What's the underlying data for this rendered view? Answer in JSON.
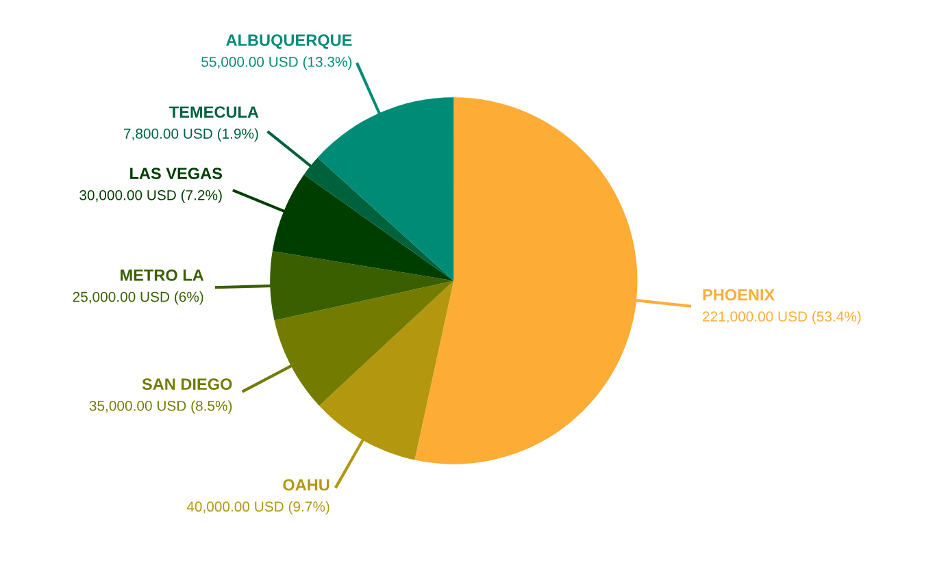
{
  "chart_data": {
    "type": "pie",
    "categories": [
      "PHOENIX",
      "OAHU",
      "SAN DIEGO",
      "METRO LA",
      "LAS VEGAS",
      "TEMECULA",
      "ALBUQUERQUE"
    ],
    "values": [
      221000,
      40000,
      35000,
      25000,
      30000,
      7800,
      55000
    ],
    "colors": [
      "#fdad35",
      "#b3970f",
      "#737b00",
      "#3a5f00",
      "#003e00",
      "#00613d",
      "#008b77"
    ],
    "value_labels": [
      "221,000.00 USD (53.4%)",
      "40,000.00 USD (9.7%)",
      "35,000.00 USD (8.5%)",
      "25,000.00 USD (6%)",
      "30,000.00 USD (7.2%)",
      "7,800.00 USD (1.9%)",
      "55,000.00 USD (13.3%)"
    ]
  }
}
